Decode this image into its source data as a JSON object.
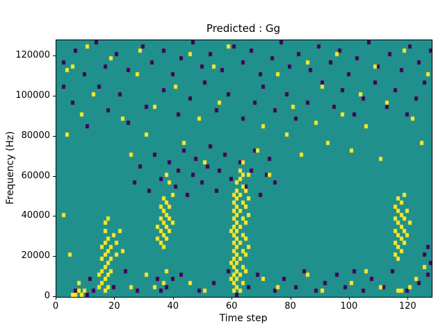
{
  "figure": {
    "title": "Predicted : Gg",
    "xlabel": "Time step",
    "ylabel": "Frequency (Hz)"
  },
  "chart_data": {
    "type": "heatmap",
    "title": "Predicted : Gg",
    "xlabel": "Time step",
    "ylabel": "Frequency (Hz)",
    "x_range": [
      0,
      128
    ],
    "y_range": [
      0,
      128000
    ],
    "x_ticks": [
      0,
      20,
      40,
      60,
      80,
      100,
      120
    ],
    "y_ticks": [
      0,
      20000,
      40000,
      60000,
      80000,
      100000,
      120000
    ],
    "grid_cols": 128,
    "grid_rows": 64,
    "legend_position": "none",
    "colors": {
      "background_value": "#20908d",
      "low_value": "#440154",
      "high_value": "#fde725"
    },
    "value_levels": {
      "low": 0,
      "mid": 1,
      "high": 2
    },
    "high_cells": [
      [
        14,
        2
      ],
      [
        14,
        5
      ],
      [
        15,
        3
      ],
      [
        15,
        6
      ],
      [
        15,
        9
      ],
      [
        15,
        12
      ],
      [
        16,
        1
      ],
      [
        16,
        4
      ],
      [
        16,
        7
      ],
      [
        16,
        10
      ],
      [
        16,
        13
      ],
      [
        16,
        16
      ],
      [
        16,
        18
      ],
      [
        17,
        2
      ],
      [
        17,
        5
      ],
      [
        17,
        8
      ],
      [
        17,
        11
      ],
      [
        17,
        14
      ],
      [
        17,
        19
      ],
      [
        18,
        6
      ],
      [
        18,
        9
      ],
      [
        18,
        12
      ],
      [
        19,
        15
      ],
      [
        20,
        10
      ],
      [
        20,
        13
      ],
      [
        21,
        16
      ],
      [
        22,
        11
      ],
      [
        34,
        14
      ],
      [
        34,
        17
      ],
      [
        35,
        13
      ],
      [
        35,
        16
      ],
      [
        35,
        19
      ],
      [
        35,
        22
      ],
      [
        36,
        12
      ],
      [
        36,
        15
      ],
      [
        36,
        18
      ],
      [
        36,
        21
      ],
      [
        36,
        24
      ],
      [
        37,
        14
      ],
      [
        37,
        17
      ],
      [
        37,
        20
      ],
      [
        37,
        23
      ],
      [
        37,
        30
      ],
      [
        38,
        16
      ],
      [
        38,
        19
      ],
      [
        38,
        22
      ],
      [
        38,
        28
      ],
      [
        39,
        18
      ],
      [
        39,
        25
      ],
      [
        59,
        4
      ],
      [
        59,
        8
      ],
      [
        59,
        16
      ],
      [
        60,
        1
      ],
      [
        60,
        3
      ],
      [
        60,
        5
      ],
      [
        60,
        7
      ],
      [
        60,
        9
      ],
      [
        60,
        11
      ],
      [
        60,
        13
      ],
      [
        60,
        15
      ],
      [
        60,
        17
      ],
      [
        60,
        19
      ],
      [
        60,
        21
      ],
      [
        60,
        23
      ],
      [
        60,
        25
      ],
      [
        61,
        2
      ],
      [
        61,
        4
      ],
      [
        61,
        6
      ],
      [
        61,
        8
      ],
      [
        61,
        10
      ],
      [
        61,
        12
      ],
      [
        61,
        14
      ],
      [
        61,
        16
      ],
      [
        61,
        18
      ],
      [
        61,
        20
      ],
      [
        61,
        22
      ],
      [
        61,
        24
      ],
      [
        61,
        26
      ],
      [
        61,
        28
      ],
      [
        62,
        1
      ],
      [
        62,
        5
      ],
      [
        62,
        9
      ],
      [
        62,
        13
      ],
      [
        62,
        17
      ],
      [
        62,
        21
      ],
      [
        62,
        25
      ],
      [
        62,
        29
      ],
      [
        62,
        31
      ],
      [
        63,
        3
      ],
      [
        63,
        7
      ],
      [
        63,
        11
      ],
      [
        63,
        15
      ],
      [
        63,
        19
      ],
      [
        63,
        23
      ],
      [
        63,
        27
      ],
      [
        63,
        30
      ],
      [
        63,
        33
      ],
      [
        64,
        6
      ],
      [
        64,
        10
      ],
      [
        64,
        14
      ],
      [
        64,
        18
      ],
      [
        64,
        22
      ],
      [
        64,
        26
      ],
      [
        65,
        12
      ],
      [
        65,
        20
      ],
      [
        65,
        24
      ],
      [
        65,
        30
      ],
      [
        115,
        10
      ],
      [
        115,
        13
      ],
      [
        115,
        16
      ],
      [
        115,
        19
      ],
      [
        115,
        22
      ],
      [
        116,
        9
      ],
      [
        116,
        12
      ],
      [
        116,
        15
      ],
      [
        116,
        18
      ],
      [
        116,
        21
      ],
      [
        116,
        24
      ],
      [
        117,
        11
      ],
      [
        117,
        14
      ],
      [
        117,
        17
      ],
      [
        117,
        20
      ],
      [
        117,
        23
      ],
      [
        118,
        13
      ],
      [
        118,
        16
      ],
      [
        118,
        19
      ],
      [
        118,
        25
      ],
      [
        119,
        15
      ],
      [
        119,
        21
      ],
      [
        120,
        18
      ],
      [
        3,
        40
      ],
      [
        3,
        56
      ],
      [
        5,
        57
      ],
      [
        8,
        45
      ],
      [
        10,
        62
      ],
      [
        12,
        50
      ],
      [
        18,
        59
      ],
      [
        22,
        44
      ],
      [
        25,
        35
      ],
      [
        27,
        55
      ],
      [
        28,
        61
      ],
      [
        30,
        40
      ],
      [
        33,
        47
      ],
      [
        40,
        52
      ],
      [
        43,
        38
      ],
      [
        45,
        60
      ],
      [
        48,
        44
      ],
      [
        50,
        33
      ],
      [
        53,
        57
      ],
      [
        55,
        48
      ],
      [
        58,
        62
      ],
      [
        68,
        36
      ],
      [
        70,
        42
      ],
      [
        72,
        30
      ],
      [
        75,
        55
      ],
      [
        78,
        40
      ],
      [
        80,
        47
      ],
      [
        83,
        35
      ],
      [
        85,
        58
      ],
      [
        88,
        43
      ],
      [
        90,
        52
      ],
      [
        92,
        38
      ],
      [
        95,
        60
      ],
      [
        97,
        45
      ],
      [
        100,
        36
      ],
      [
        103,
        50
      ],
      [
        105,
        42
      ],
      [
        108,
        57
      ],
      [
        110,
        34
      ],
      [
        112,
        48
      ],
      [
        118,
        61
      ],
      [
        121,
        44
      ],
      [
        124,
        38
      ],
      [
        126,
        55
      ],
      [
        2,
        20
      ],
      [
        4,
        10
      ],
      [
        7,
        3
      ],
      [
        25,
        2
      ],
      [
        30,
        5
      ],
      [
        33,
        2
      ],
      [
        36,
        3
      ],
      [
        37,
        6
      ],
      [
        45,
        3
      ],
      [
        50,
        1
      ],
      [
        70,
        4
      ],
      [
        75,
        2
      ],
      [
        85,
        5
      ],
      [
        90,
        1
      ],
      [
        100,
        3
      ],
      [
        105,
        6
      ],
      [
        110,
        2
      ],
      [
        122,
        4
      ],
      [
        125,
        7
      ],
      [
        5,
        0
      ],
      [
        6,
        0
      ],
      [
        7,
        1
      ],
      [
        8,
        0
      ],
      [
        9,
        1
      ],
      [
        116,
        1
      ],
      [
        117,
        1
      ],
      [
        120,
        2
      ]
    ],
    "low_cells": [
      [
        2,
        58
      ],
      [
        6,
        61
      ],
      [
        9,
        55
      ],
      [
        13,
        63
      ],
      [
        16,
        57
      ],
      [
        20,
        60
      ],
      [
        24,
        56
      ],
      [
        29,
        62
      ],
      [
        32,
        58
      ],
      [
        36,
        61
      ],
      [
        39,
        55
      ],
      [
        42,
        59
      ],
      [
        46,
        63
      ],
      [
        49,
        57
      ],
      [
        52,
        60
      ],
      [
        56,
        56
      ],
      [
        60,
        62
      ],
      [
        63,
        58
      ],
      [
        66,
        61
      ],
      [
        69,
        55
      ],
      [
        73,
        59
      ],
      [
        76,
        63
      ],
      [
        79,
        57
      ],
      [
        82,
        60
      ],
      [
        86,
        56
      ],
      [
        89,
        62
      ],
      [
        93,
        58
      ],
      [
        96,
        61
      ],
      [
        99,
        55
      ],
      [
        102,
        59
      ],
      [
        106,
        63
      ],
      [
        109,
        57
      ],
      [
        113,
        60
      ],
      [
        117,
        56
      ],
      [
        120,
        62
      ],
      [
        123,
        58
      ],
      [
        127,
        61
      ],
      [
        26,
        28
      ],
      [
        28,
        32
      ],
      [
        31,
        26
      ],
      [
        33,
        35
      ],
      [
        35,
        29
      ],
      [
        38,
        33
      ],
      [
        40,
        27
      ],
      [
        41,
        31
      ],
      [
        43,
        36
      ],
      [
        44,
        25
      ],
      [
        46,
        30
      ],
      [
        47,
        34
      ],
      [
        49,
        28
      ],
      [
        51,
        32
      ],
      [
        52,
        37
      ],
      [
        54,
        26
      ],
      [
        55,
        31
      ],
      [
        57,
        35
      ],
      [
        59,
        29
      ],
      [
        62,
        33
      ],
      [
        64,
        27
      ],
      [
        66,
        31
      ],
      [
        67,
        36
      ],
      [
        69,
        25
      ],
      [
        71,
        30
      ],
      [
        72,
        34
      ],
      [
        74,
        28
      ],
      [
        6,
        1
      ],
      [
        10,
        0
      ],
      [
        11,
        4
      ],
      [
        12,
        1
      ],
      [
        19,
        2
      ],
      [
        23,
        6
      ],
      [
        27,
        1
      ],
      [
        34,
        4
      ],
      [
        35,
        1
      ],
      [
        37,
        2
      ],
      [
        39,
        4
      ],
      [
        42,
        5
      ],
      [
        48,
        1
      ],
      [
        53,
        3
      ],
      [
        58,
        6
      ],
      [
        61,
        0
      ],
      [
        65,
        2
      ],
      [
        68,
        5
      ],
      [
        74,
        1
      ],
      [
        77,
        4
      ],
      [
        81,
        2
      ],
      [
        84,
        6
      ],
      [
        88,
        1
      ],
      [
        91,
        3
      ],
      [
        95,
        5
      ],
      [
        98,
        2
      ],
      [
        101,
        6
      ],
      [
        104,
        1
      ],
      [
        107,
        4
      ],
      [
        111,
        2
      ],
      [
        114,
        6
      ],
      [
        119,
        1
      ],
      [
        123,
        3
      ],
      [
        126,
        5
      ],
      [
        5,
        48
      ],
      [
        10,
        42
      ],
      [
        14,
        52
      ],
      [
        17,
        46
      ],
      [
        21,
        50
      ],
      [
        24,
        43
      ],
      [
        30,
        47
      ],
      [
        36,
        51
      ],
      [
        41,
        45
      ],
      [
        45,
        49
      ],
      [
        50,
        53
      ],
      [
        54,
        46
      ],
      [
        58,
        50
      ],
      [
        63,
        44
      ],
      [
        67,
        48
      ],
      [
        70,
        52
      ],
      [
        74,
        46
      ],
      [
        78,
        50
      ],
      [
        81,
        44
      ],
      [
        85,
        48
      ],
      [
        90,
        53
      ],
      [
        94,
        47
      ],
      [
        97,
        51
      ],
      [
        101,
        45
      ],
      [
        104,
        49
      ],
      [
        108,
        53
      ],
      [
        112,
        47
      ],
      [
        115,
        51
      ],
      [
        119,
        45
      ],
      [
        122,
        49
      ],
      [
        125,
        53
      ],
      [
        125,
        10
      ],
      [
        126,
        12
      ],
      [
        127,
        8
      ],
      [
        2,
        52
      ]
    ]
  }
}
